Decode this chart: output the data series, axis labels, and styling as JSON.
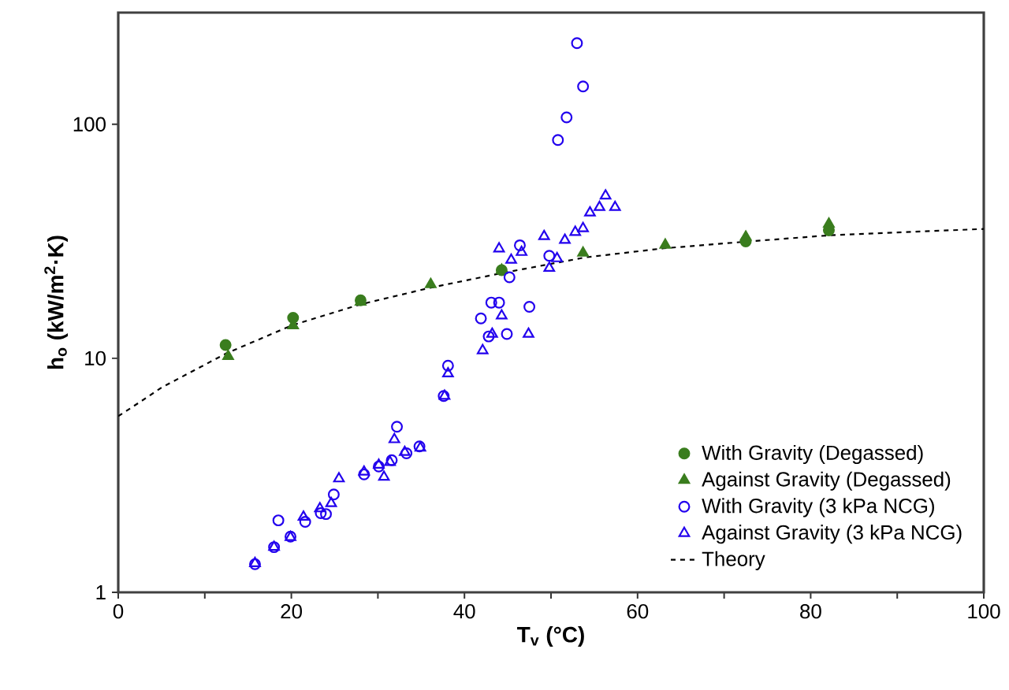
{
  "chart_data": {
    "type": "scatter",
    "xlabel": "T$_{v}$ (°C)",
    "ylabel": "h$_{o}$ (kW/m$^{2}$·K)",
    "xlim": [
      0,
      100
    ],
    "xticks": [
      0,
      {
        "value": 10,
        "label": null
      },
      20,
      {
        "value": 30,
        "label": null
      },
      40,
      {
        "value": 50,
        "label": null
      },
      60,
      {
        "value": 70,
        "label": null
      },
      80,
      {
        "value": 90,
        "label": null
      },
      100
    ],
    "ylim": [
      1,
      300
    ],
    "yticks": [
      1,
      10,
      100
    ],
    "log": "y",
    "grid": false,
    "legend": "bottom right",
    "series": [
      {
        "name": "With Gravity (Degassed)",
        "color": "#3a7d1e",
        "marker": "circle",
        "x": [
          12.4,
          20.2,
          28.0,
          36.1,
          44.3,
          53.7,
          63.2,
          72.5,
          82.1
        ],
        "values": [
          11.4,
          14.9,
          17.7,
          null,
          23.8,
          null,
          null,
          31.6,
          35.2
        ]
      },
      {
        "name": "Against Gravity (Degassed)",
        "color": "#3a7d1e",
        "marker": "triangle",
        "x": [
          12.7,
          20.2,
          28.0,
          36.1,
          44.3,
          53.7,
          63.2,
          72.5,
          82.1
        ],
        "values": [
          10.2,
          13.8,
          17.4,
          20.7,
          23.8,
          28.2,
          30.5,
          33.0,
          37.5
        ]
      },
      {
        "name": "With Gravity (3 kPa NCG)",
        "color": "#2200ee",
        "marker": "circle",
        "x": [
          15.8,
          18.0,
          18.5,
          19.9,
          21.6,
          23.4,
          24.0,
          24.9,
          28.4,
          30.1,
          31.6,
          32.2,
          33.3,
          34.8,
          37.6,
          38.1,
          41.9,
          42.8,
          43.1,
          44.0,
          44.9,
          45.2,
          46.4,
          47.5,
          49.8,
          50.8,
          51.8,
          53.0,
          53.7
        ],
        "values": [
          1.32,
          1.56,
          2.03,
          1.73,
          2.0,
          2.18,
          2.16,
          2.62,
          3.19,
          3.45,
          3.67,
          5.1,
          3.93,
          4.2,
          6.9,
          9.3,
          14.8,
          12.4,
          17.3,
          17.3,
          12.7,
          22.2,
          30.4,
          16.6,
          27.4,
          85.6,
          107,
          222,
          145
        ]
      },
      {
        "name": "Against Gravity (3 kPa NCG)",
        "color": "#2200ee",
        "marker": "triangle",
        "x": [
          15.8,
          18.0,
          19.9,
          21.4,
          23.3,
          24.6,
          25.5,
          28.4,
          30.1,
          30.7,
          31.4,
          31.9,
          33.1,
          34.9,
          37.7,
          38.1,
          42.1,
          43.2,
          44.3,
          47.4,
          44.0,
          45.4,
          46.6,
          49.2,
          49.8,
          50.7,
          51.6,
          52.8,
          53.7,
          54.5,
          55.6,
          56.3,
          57.4
        ],
        "values": [
          1.33,
          1.56,
          1.72,
          2.1,
          2.28,
          2.4,
          3.06,
          3.27,
          3.5,
          3.11,
          3.6,
          4.5,
          3.97,
          4.14,
          6.9,
          8.6,
          10.8,
          12.7,
          15.2,
          12.7,
          29.4,
          26.3,
          28.4,
          33.2,
          24.3,
          26.7,
          32.0,
          34.6,
          35.9,
          41.9,
          44.2,
          49.5,
          44.2
        ]
      },
      {
        "name": "Theory",
        "type": "line",
        "color": "#000000",
        "line_style": "dashed",
        "marker": "none",
        "x": [
          0,
          2.5,
          5,
          12.5,
          20,
          28,
          36,
          44,
          54,
          63,
          72.5,
          82,
          90,
          100
        ],
        "values": [
          5.66,
          6.5,
          7.5,
          10.5,
          13.8,
          17,
          20,
          23,
          27,
          29.5,
          31.5,
          33.5,
          34.5,
          35.7
        ]
      }
    ]
  }
}
